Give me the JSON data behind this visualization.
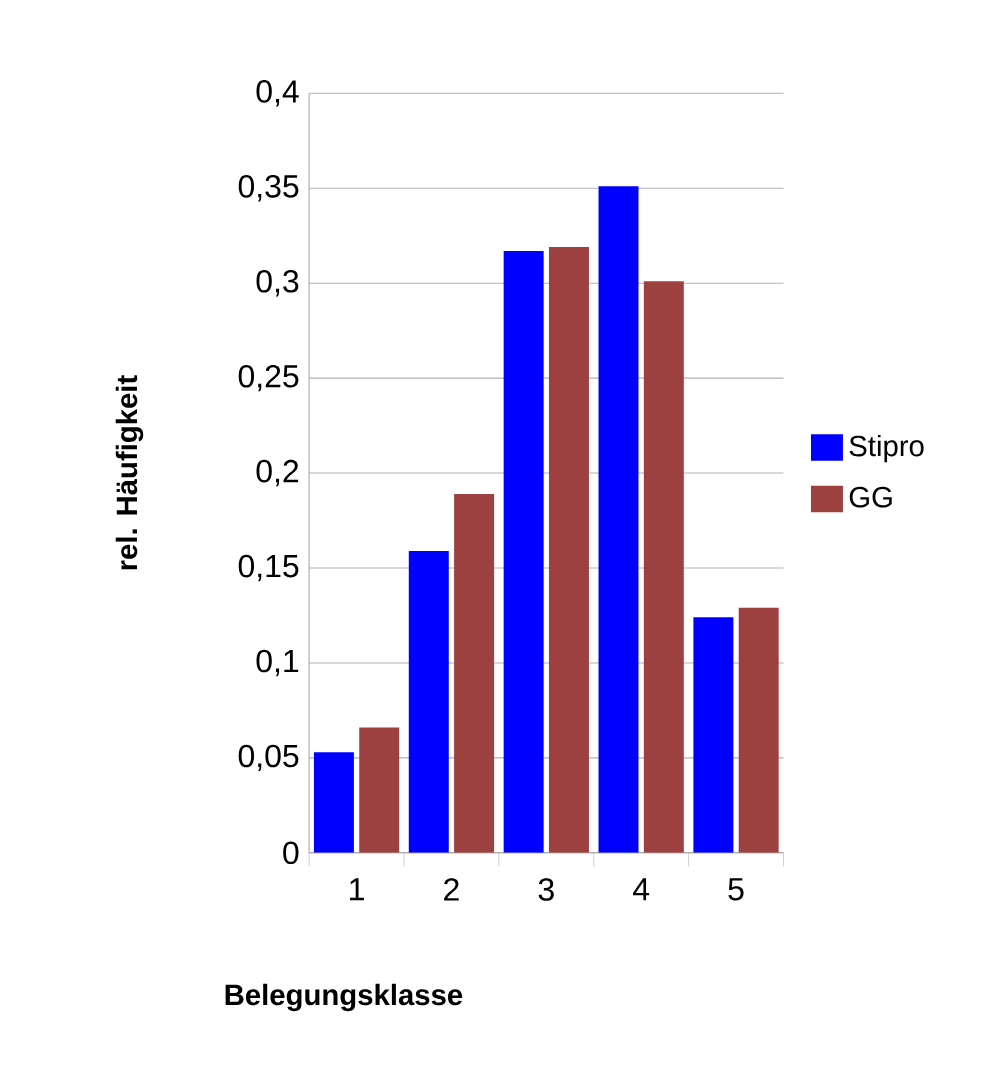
{
  "chart_data": {
    "type": "bar",
    "xlabel": "Belegungsklasse",
    "ylabel": "rel. Häufigkeit",
    "categories": [
      "1",
      "2",
      "3",
      "4",
      "5"
    ],
    "series": [
      {
        "name": "Stipro",
        "color": "#0000ff",
        "values": [
          0.053,
          0.159,
          0.317,
          0.351,
          0.124
        ]
      },
      {
        "name": "GG",
        "color": "#9c4040",
        "values": [
          0.066,
          0.189,
          0.319,
          0.301,
          0.129
        ]
      }
    ],
    "ylim": [
      0,
      0.4
    ],
    "yticks": [
      0,
      {
        "value": 0.05,
        "label": "0,05"
      },
      {
        "value": 0.1,
        "label": "0,1"
      },
      {
        "value": 0.15,
        "label": "0,15"
      },
      {
        "value": 0.2,
        "label": "0,2"
      },
      {
        "value": 0.25,
        "label": "0,25"
      },
      {
        "value": 0.3,
        "label": "0,3"
      },
      {
        "value": 0.35,
        "label": "0,35"
      },
      {
        "value": 0.4,
        "label": "0,4"
      }
    ],
    "grid": "y",
    "legend": "right"
  }
}
